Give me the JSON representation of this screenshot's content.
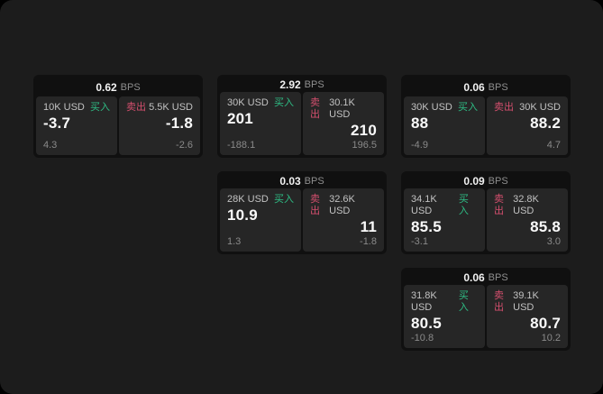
{
  "labels": {
    "bps_unit": "BPS",
    "buy": "买入",
    "sell": "卖出"
  },
  "colors": {
    "outer_background": "#000000",
    "surface": "#1c1c1c",
    "card": "#101010",
    "panel": "#262626",
    "buy_green": "#2ebd85",
    "sell_red": "#d44f6e",
    "text_primary": "#fafafa",
    "text_secondary": "#c2c2c2",
    "text_muted": "#8a8a8a"
  },
  "cards": [
    {
      "grid": {
        "col": 1,
        "row": 1
      },
      "bps": "0.62",
      "buy": {
        "amount": "10K USD",
        "value": "-3.7",
        "sub": "4.3"
      },
      "sell": {
        "amount": "5.5K USD",
        "value": "-1.8",
        "sub": "-2.6"
      }
    },
    {
      "grid": {
        "col": 2,
        "row": 1
      },
      "bps": "2.92",
      "buy": {
        "amount": "30K USD",
        "value": "201",
        "sub": "-188.1"
      },
      "sell": {
        "amount": "30.1K USD",
        "value": "210",
        "sub": "196.5"
      }
    },
    {
      "grid": {
        "col": 3,
        "row": 1
      },
      "bps": "0.06",
      "buy": {
        "amount": "30K USD",
        "value": "88",
        "sub": "-4.9"
      },
      "sell": {
        "amount": "30K USD",
        "value": "88.2",
        "sub": "4.7"
      }
    },
    {
      "grid": {
        "col": 2,
        "row": 2
      },
      "bps": "0.03",
      "buy": {
        "amount": "28K USD",
        "value": "10.9",
        "sub": "1.3"
      },
      "sell": {
        "amount": "32.6K USD",
        "value": "11",
        "sub": "-1.8"
      }
    },
    {
      "grid": {
        "col": 3,
        "row": 2
      },
      "bps": "0.09",
      "buy": {
        "amount": "34.1K USD",
        "value": "85.5",
        "sub": "-3.1"
      },
      "sell": {
        "amount": "32.8K USD",
        "value": "85.8",
        "sub": "3.0"
      }
    },
    {
      "grid": {
        "col": 3,
        "row": 3
      },
      "bps": "0.06",
      "buy": {
        "amount": "31.8K USD",
        "value": "80.5",
        "sub": "-10.8"
      },
      "sell": {
        "amount": "39.1K USD",
        "value": "80.7",
        "sub": "10.2"
      }
    }
  ]
}
